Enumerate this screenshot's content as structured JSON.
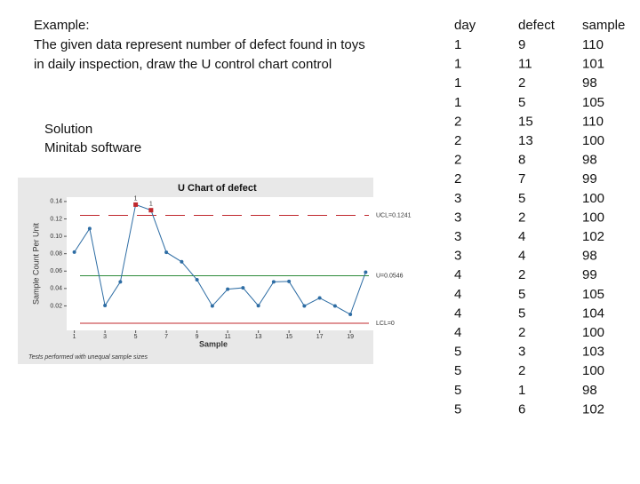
{
  "intro": [
    "Example:",
    "The given data represent number of defect found in toys",
    "in daily inspection, draw the U control chart control"
  ],
  "solution": [
    "Solution",
    "Minitab software"
  ],
  "table": {
    "header": [
      "day",
      "defect",
      "sample"
    ],
    "rows": [
      [
        1,
        9,
        110
      ],
      [
        1,
        11,
        101
      ],
      [
        1,
        2,
        98
      ],
      [
        1,
        5,
        105
      ],
      [
        2,
        15,
        110
      ],
      [
        2,
        13,
        100
      ],
      [
        2,
        8,
        98
      ],
      [
        2,
        7,
        99
      ],
      [
        3,
        5,
        100
      ],
      [
        3,
        2,
        100
      ],
      [
        3,
        4,
        102
      ],
      [
        3,
        4,
        98
      ],
      [
        4,
        2,
        99
      ],
      [
        4,
        5,
        105
      ],
      [
        4,
        5,
        104
      ],
      [
        4,
        2,
        100
      ],
      [
        5,
        3,
        103
      ],
      [
        5,
        2,
        100
      ],
      [
        5,
        1,
        98
      ],
      [
        5,
        6,
        102
      ]
    ]
  },
  "chart_data": {
    "type": "line",
    "title": "U Chart of defect",
    "xlabel": "Sample",
    "ylabel": "Sample Count Per Unit",
    "note": "Tests performed with unequal sample sizes",
    "x": [
      1,
      2,
      3,
      4,
      5,
      6,
      7,
      8,
      9,
      10,
      11,
      12,
      13,
      14,
      15,
      16,
      17,
      18,
      19,
      20
    ],
    "series": [
      {
        "name": "defect",
        "color": "#2e6da4",
        "values": [
          0.0818,
          0.1089,
          0.0204,
          0.0476,
          0.1364,
          0.13,
          0.0816,
          0.0707,
          0.05,
          0.02,
          0.0392,
          0.0408,
          0.0202,
          0.0476,
          0.0481,
          0.02,
          0.0291,
          0.02,
          0.0102,
          0.0588
        ]
      }
    ],
    "flagged": [
      5,
      6
    ],
    "flag_label": "1",
    "flag_color": "#c0282d",
    "limits": [
      {
        "label": "UCL=0.1241",
        "value": 0.1241,
        "color": "#c0282d",
        "dash": true
      },
      {
        "label": "U=0.0546",
        "value": 0.0546,
        "color": "#2e8b3a",
        "dash": false
      },
      {
        "label": "LCL=0",
        "value": 0,
        "color": "#c0282d",
        "dash": false
      }
    ],
    "xlim": [
      0.5,
      20.5
    ],
    "xticks": [
      1,
      3,
      5,
      7,
      9,
      11,
      13,
      15,
      17,
      19
    ],
    "ylim": [
      -0.002,
      0.145
    ],
    "yticks": [
      {
        "value": 0.02,
        "label": "0.02"
      },
      {
        "value": 0.04,
        "label": "0.04"
      },
      {
        "value": 0.06,
        "label": "0.06"
      },
      {
        "value": 0.08,
        "label": "0.08"
      },
      {
        "value": 0.1,
        "label": "0.10"
      },
      {
        "value": 0.12,
        "label": "0.12"
      },
      {
        "value": 0.14,
        "label": "0.14"
      }
    ]
  }
}
